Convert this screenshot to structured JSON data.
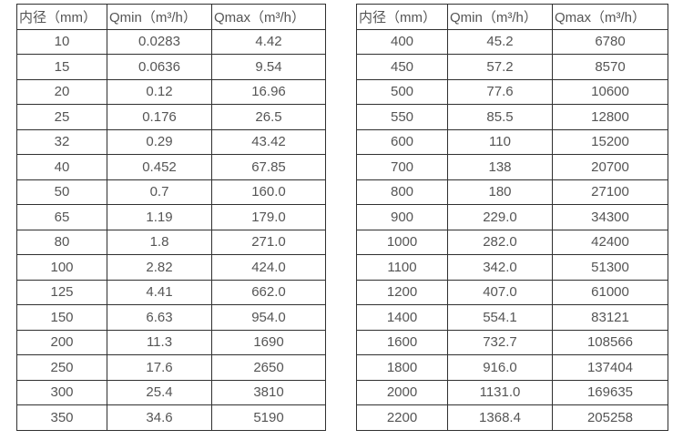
{
  "colors": {
    "background": "#ffffff",
    "border": "#303030",
    "text": "#555555"
  },
  "tables": [
    {
      "name": "small-diameters",
      "headers": [
        "内径（mm）",
        "Qmin（m³/h）",
        "Qmax（m³/h）"
      ],
      "rows": [
        [
          "10",
          "0.0283",
          "4.42"
        ],
        [
          "15",
          "0.0636",
          "9.54"
        ],
        [
          "20",
          "0.12",
          "16.96"
        ],
        [
          "25",
          "0.176",
          "26.5"
        ],
        [
          "32",
          "0.29",
          "43.42"
        ],
        [
          "40",
          "0.452",
          "67.85"
        ],
        [
          "50",
          "0.7",
          "160.0"
        ],
        [
          "65",
          "1.19",
          "179.0"
        ],
        [
          "80",
          "1.8",
          "271.0"
        ],
        [
          "100",
          "2.82",
          "424.0"
        ],
        [
          "125",
          "4.41",
          "662.0"
        ],
        [
          "150",
          "6.63",
          "954.0"
        ],
        [
          "200",
          "11.3",
          "1690"
        ],
        [
          "250",
          "17.6",
          "2650"
        ],
        [
          "300",
          "25.4",
          "3810"
        ],
        [
          "350",
          "34.6",
          "5190"
        ]
      ]
    },
    {
      "name": "large-diameters",
      "headers": [
        "内径（mm）",
        "Qmin（m³/h）",
        "Qmax（m³/h）"
      ],
      "rows": [
        [
          "400",
          "45.2",
          "6780"
        ],
        [
          "450",
          "57.2",
          "8570"
        ],
        [
          "500",
          "77.6",
          "10600"
        ],
        [
          "550",
          "85.5",
          "12800"
        ],
        [
          "600",
          "110",
          "15200"
        ],
        [
          "700",
          "138",
          "20700"
        ],
        [
          "800",
          "180",
          "27100"
        ],
        [
          "900",
          "229.0",
          "34300"
        ],
        [
          "1000",
          "282.0",
          "42400"
        ],
        [
          "1100",
          "342.0",
          "51300"
        ],
        [
          "1200",
          "407.0",
          "61000"
        ],
        [
          "1400",
          "554.1",
          "83121"
        ],
        [
          "1600",
          "732.7",
          "108566"
        ],
        [
          "1800",
          "916.0",
          "137404"
        ],
        [
          "2000",
          "1131.0",
          "169635"
        ],
        [
          "2200",
          "1368.4",
          "205258"
        ]
      ]
    }
  ]
}
